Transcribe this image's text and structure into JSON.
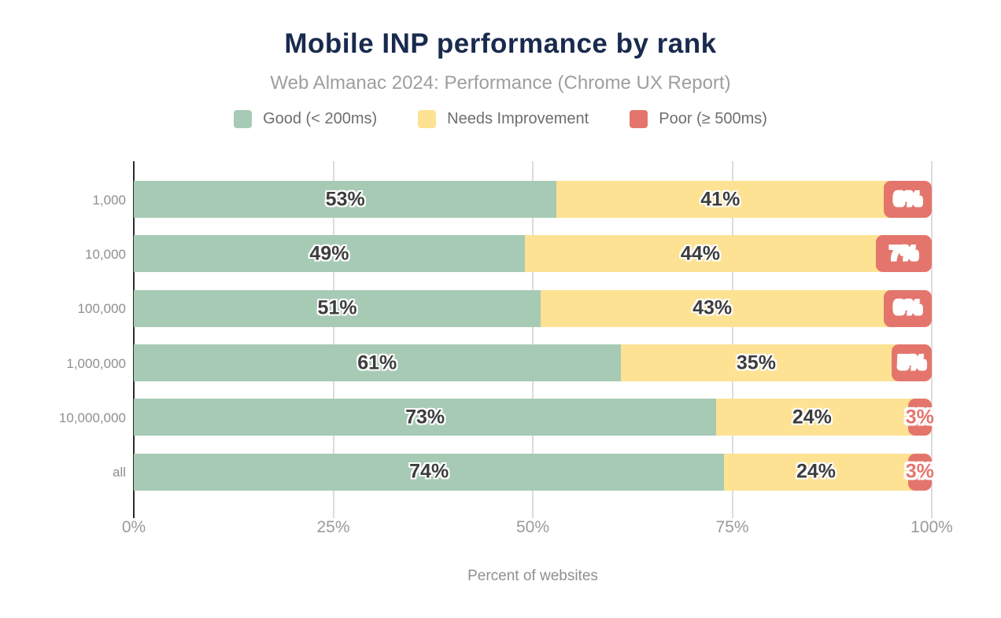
{
  "title": "Mobile INP performance by rank",
  "subtitle": "Web Almanac 2024: Performance (Chrome UX Report)",
  "legend": [
    {
      "label": "Good (< 200ms)",
      "color": "#a7cab5"
    },
    {
      "label": "Needs Improvement",
      "color": "#fde293"
    },
    {
      "label": "Poor (≥ 500ms)",
      "color": "#e4756c"
    }
  ],
  "chart_data": {
    "type": "bar",
    "orientation": "horizontal",
    "stacked": true,
    "categories": [
      "1,000",
      "10,000",
      "100,000",
      "1,000,000",
      "10,000,000",
      "all"
    ],
    "series": [
      {
        "name": "Good (< 200ms)",
        "color": "#a7cab5",
        "values": [
          53,
          49,
          51,
          61,
          73,
          74
        ]
      },
      {
        "name": "Needs Improvement",
        "color": "#fde293",
        "values": [
          41,
          44,
          43,
          35,
          24,
          24
        ]
      },
      {
        "name": "Poor (≥ 500ms)",
        "color": "#e4756c",
        "values": [
          6,
          7,
          6,
          5,
          3,
          3
        ]
      }
    ],
    "value_suffix": "%",
    "xlabel": "Percent of websites",
    "x_ticks": [
      "0%",
      "25%",
      "50%",
      "75%",
      "100%"
    ],
    "x_tick_values": [
      0,
      25,
      50,
      75,
      100
    ],
    "xlim": [
      0,
      100
    ],
    "grid": true,
    "legend_position": "top"
  },
  "colors": {
    "background": "#ffffff",
    "title": "#192a4e",
    "subtitle": "#9e9e9e",
    "legend_text": "#6e6e6e",
    "category_label": "#8f8f8f",
    "tick_label": "#9a9a9a",
    "axis_line": "#2b2b2b",
    "gridline": "#dcdcdc",
    "bar_label_dark": "#3d3d3d",
    "bar_label_light": "#ffffff",
    "poor_label_outlined": "#e4756c"
  }
}
